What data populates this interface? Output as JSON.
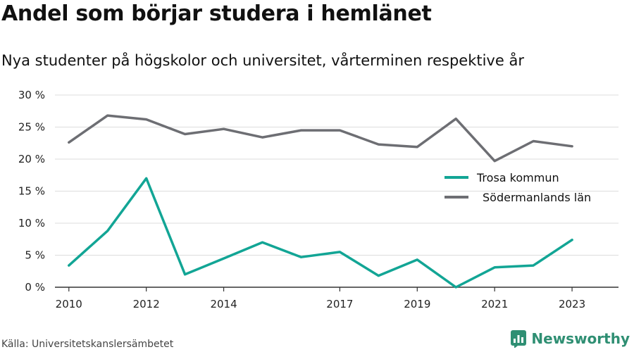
{
  "title": "Andel som börjar studera i hemlänet",
  "subtitle": "Nya studenter på högskolor och universitet, vårterminen respektive år",
  "source": "Källa: Universitetskanslersämbetet",
  "brand": "Newsworthy",
  "colors": {
    "trosa": "#12a595",
    "sodermanland": "#6d6e73",
    "grid": "#dcdcdc",
    "axis": "#333333",
    "brand": "#2f8f73"
  },
  "chart_data": {
    "type": "line",
    "x": [
      2010,
      2011,
      2012,
      2013,
      2014,
      2015,
      2016,
      2017,
      2018,
      2019,
      2020,
      2021,
      2022,
      2023
    ],
    "x_tick_labels": [
      "2010",
      "2012",
      "2014",
      "2017",
      "2019",
      "2021",
      "2023"
    ],
    "y_tick_labels": [
      "0 %",
      "5 %",
      "10 %",
      "15 %",
      "20 %",
      "25 %",
      "30 %"
    ],
    "ylim": [
      0,
      30
    ],
    "grid": true,
    "legend_position": "right",
    "series": [
      {
        "name": "Trosa kommun",
        "color": "#12a595",
        "values": [
          3.4,
          8.8,
          17.0,
          2.0,
          4.5,
          7.0,
          4.7,
          5.5,
          1.8,
          4.3,
          0.0,
          3.1,
          3.4,
          7.4
        ]
      },
      {
        "name": "Södermanlands län",
        "color": "#6d6e73",
        "values": [
          22.6,
          26.8,
          26.2,
          23.9,
          24.7,
          23.4,
          24.5,
          24.5,
          22.3,
          21.9,
          26.3,
          19.7,
          22.8,
          22.0
        ]
      }
    ]
  }
}
